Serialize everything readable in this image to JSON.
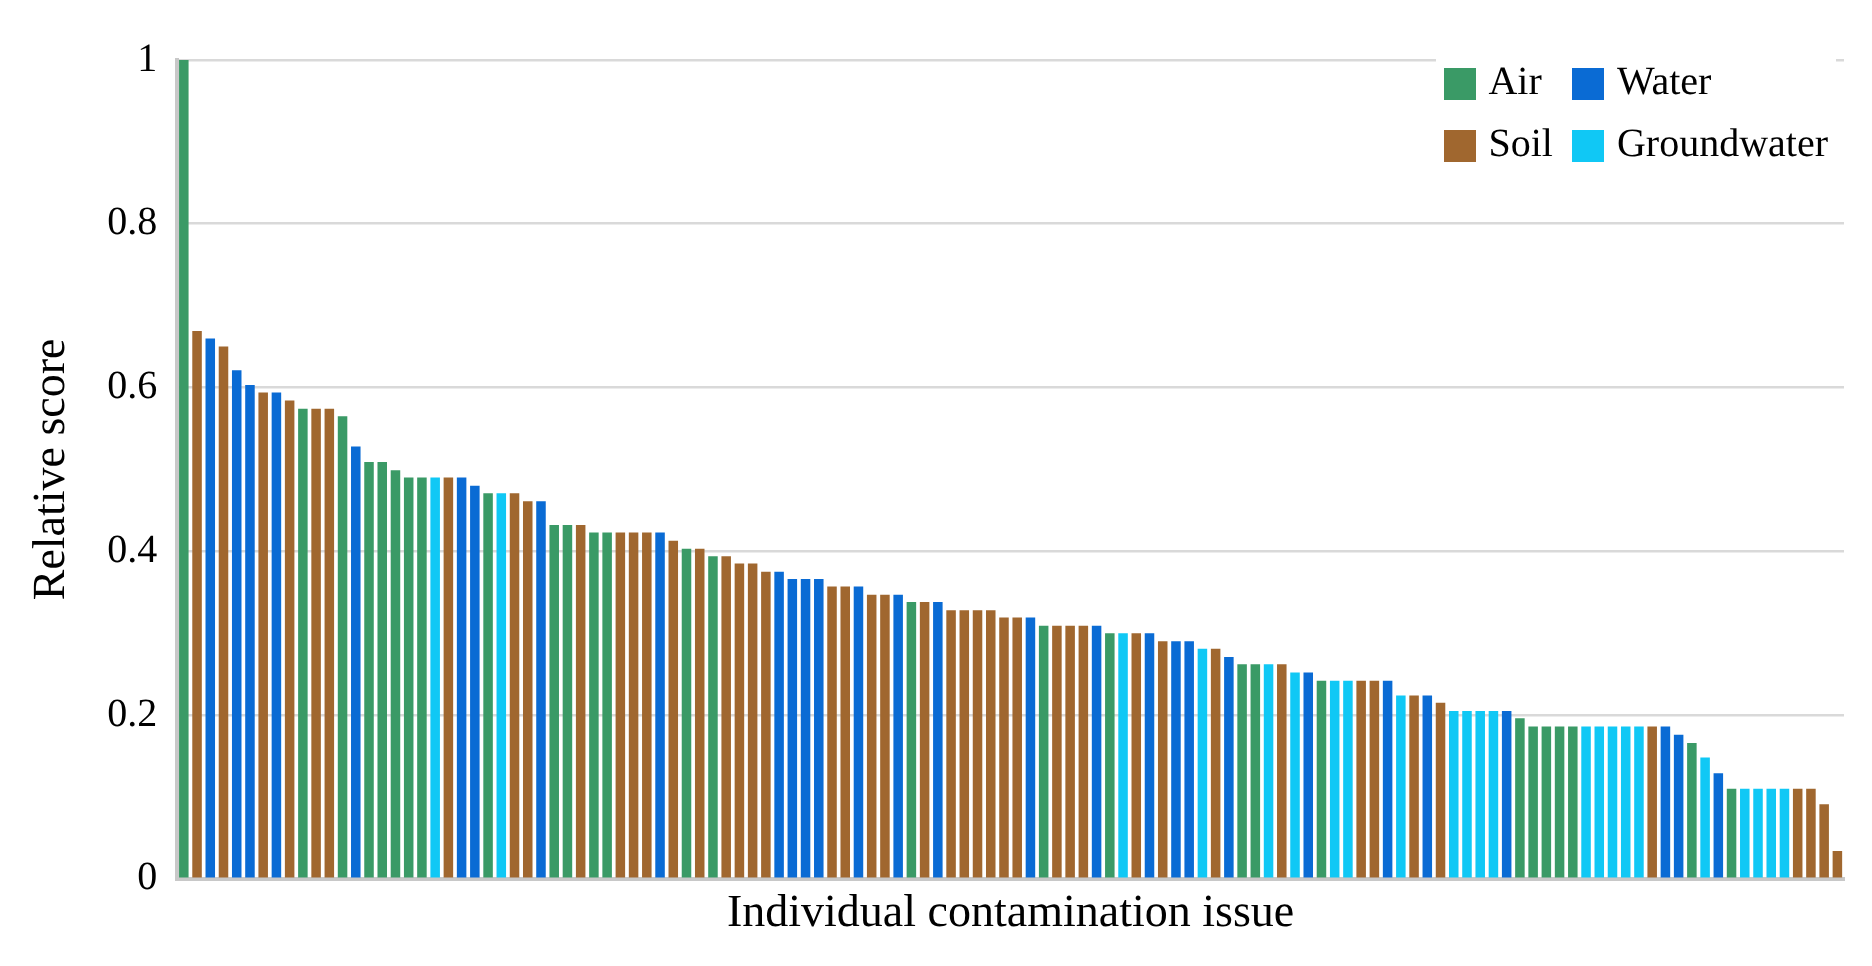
{
  "chart_data": {
    "type": "bar",
    "xlabel": "Individual contamination issue",
    "ylabel": "Relative score",
    "categories": [
      null,
      null,
      null,
      null,
      null,
      null,
      null,
      null,
      null,
      null,
      null,
      null,
      null,
      null,
      null,
      null,
      null,
      null,
      null,
      null,
      null,
      null,
      null,
      null,
      null,
      null,
      null,
      null,
      null,
      null,
      null,
      null,
      null,
      null,
      null,
      null,
      null,
      null,
      null,
      null,
      null,
      null,
      null,
      null,
      null,
      null,
      null,
      null,
      null,
      null,
      null,
      null,
      null,
      null,
      null,
      null,
      null,
      null,
      null,
      null,
      null,
      null,
      null,
      null,
      null,
      null,
      null,
      null,
      null,
      null,
      null,
      null,
      null,
      null,
      null,
      null,
      null,
      null,
      null,
      null,
      null,
      null,
      null,
      null,
      null,
      null,
      null,
      null,
      null,
      null,
      null,
      null,
      null,
      null,
      null,
      null,
      null,
      null,
      null,
      null,
      null,
      null,
      null,
      null,
      null,
      null,
      null,
      null,
      null,
      null,
      null,
      null,
      null,
      null,
      null,
      null,
      null,
      null,
      null,
      null,
      null,
      null,
      null,
      null,
      null,
      null
    ],
    "series": [
      {
        "name": "Air",
        "color": "#3a9a66",
        "values": [
          1.0,
          null,
          null,
          null,
          null,
          null,
          null,
          null,
          null,
          0.574,
          null,
          null,
          0.565,
          null,
          0.509,
          0.509,
          0.499,
          0.49,
          0.49,
          null,
          null,
          null,
          null,
          0.471,
          null,
          null,
          null,
          null,
          0.432,
          0.432,
          null,
          0.423,
          0.423,
          null,
          null,
          null,
          null,
          null,
          0.403,
          null,
          0.394,
          null,
          null,
          null,
          null,
          null,
          null,
          null,
          null,
          null,
          null,
          null,
          null,
          null,
          null,
          0.338,
          null,
          null,
          null,
          null,
          null,
          null,
          null,
          null,
          null,
          0.309,
          null,
          null,
          null,
          null,
          0.3,
          null,
          null,
          null,
          null,
          null,
          null,
          null,
          null,
          null,
          0.262,
          0.262,
          null,
          null,
          null,
          null,
          0.242,
          null,
          null,
          null,
          null,
          null,
          null,
          null,
          null,
          null,
          null,
          null,
          null,
          null,
          null,
          0.196,
          0.186,
          0.186,
          0.186,
          0.186,
          null,
          null,
          null,
          null,
          null,
          null,
          null,
          null,
          0.166,
          null,
          null,
          0.11,
          null,
          null,
          null,
          null,
          null,
          null,
          null,
          null
        ]
      },
      {
        "name": "Water",
        "color": "#0a6bd4",
        "values": [
          null,
          null,
          0.66,
          null,
          0.621,
          0.603,
          null,
          0.594,
          null,
          null,
          null,
          null,
          null,
          0.528,
          null,
          null,
          null,
          null,
          null,
          null,
          null,
          0.49,
          0.48,
          null,
          null,
          null,
          null,
          0.461,
          null,
          null,
          null,
          null,
          null,
          null,
          null,
          null,
          0.423,
          null,
          null,
          null,
          null,
          null,
          null,
          null,
          null,
          0.375,
          0.366,
          0.366,
          0.366,
          null,
          null,
          0.357,
          null,
          null,
          0.347,
          null,
          null,
          0.338,
          null,
          null,
          null,
          null,
          null,
          null,
          0.319,
          null,
          null,
          null,
          null,
          0.309,
          null,
          null,
          null,
          0.3,
          null,
          0.29,
          0.29,
          null,
          null,
          0.271,
          null,
          null,
          null,
          null,
          null,
          0.252,
          null,
          null,
          null,
          null,
          null,
          0.242,
          null,
          null,
          0.224,
          null,
          null,
          null,
          null,
          null,
          0.205,
          null,
          null,
          null,
          null,
          null,
          null,
          null,
          null,
          null,
          null,
          null,
          0.186,
          0.176,
          null,
          null,
          0.129,
          null,
          null,
          null,
          null,
          null,
          null,
          null,
          null,
          null
        ]
      },
      {
        "name": "Soil",
        "color": "#a0672f",
        "values": [
          null,
          0.669,
          null,
          0.65,
          null,
          null,
          0.594,
          null,
          0.584,
          null,
          0.574,
          0.574,
          null,
          null,
          null,
          null,
          null,
          null,
          null,
          null,
          0.49,
          null,
          null,
          null,
          null,
          0.471,
          0.461,
          null,
          null,
          null,
          0.432,
          null,
          null,
          0.423,
          0.423,
          0.423,
          null,
          0.413,
          null,
          0.403,
          null,
          0.394,
          0.385,
          0.385,
          0.375,
          null,
          null,
          null,
          null,
          0.357,
          0.357,
          null,
          0.347,
          0.347,
          null,
          null,
          0.338,
          null,
          0.328,
          0.328,
          0.328,
          0.328,
          0.319,
          0.319,
          null,
          null,
          0.309,
          0.309,
          0.309,
          null,
          null,
          null,
          0.3,
          null,
          0.29,
          null,
          null,
          null,
          0.281,
          null,
          null,
          null,
          null,
          0.262,
          null,
          null,
          null,
          null,
          null,
          0.242,
          0.242,
          null,
          null,
          0.224,
          null,
          0.215,
          null,
          null,
          null,
          null,
          null,
          null,
          null,
          null,
          null,
          null,
          null,
          null,
          null,
          null,
          null,
          0.186,
          null,
          null,
          null,
          null,
          null,
          null,
          null,
          null,
          null,
          null,
          0.11,
          0.11,
          0.091,
          0.034
        ]
      },
      {
        "name": "Groundwater",
        "color": "#10c8f5",
        "values": [
          null,
          null,
          null,
          null,
          null,
          null,
          null,
          null,
          null,
          null,
          null,
          null,
          null,
          null,
          null,
          null,
          null,
          null,
          null,
          0.49,
          null,
          null,
          null,
          null,
          0.471,
          null,
          null,
          null,
          null,
          null,
          null,
          null,
          null,
          null,
          null,
          null,
          null,
          null,
          null,
          null,
          null,
          null,
          null,
          null,
          null,
          null,
          null,
          null,
          null,
          null,
          null,
          null,
          null,
          null,
          null,
          null,
          null,
          null,
          null,
          null,
          null,
          null,
          null,
          null,
          null,
          null,
          null,
          null,
          null,
          null,
          null,
          0.3,
          null,
          null,
          null,
          null,
          null,
          0.281,
          null,
          null,
          null,
          null,
          0.262,
          null,
          0.252,
          null,
          null,
          0.242,
          0.242,
          null,
          null,
          null,
          0.224,
          null,
          null,
          null,
          0.205,
          0.205,
          0.205,
          0.205,
          null,
          null,
          null,
          null,
          null,
          null,
          0.186,
          0.186,
          0.186,
          0.186,
          0.186,
          null,
          null,
          null,
          null,
          0.148,
          null,
          null,
          0.11,
          0.11,
          0.11,
          0.11,
          null,
          null,
          null,
          null
        ]
      }
    ],
    "ylim": [
      0,
      1
    ],
    "yticks": [
      0,
      0.2,
      0.4,
      0.6,
      0.8,
      1
    ],
    "grid": "y",
    "legend": "top right"
  }
}
